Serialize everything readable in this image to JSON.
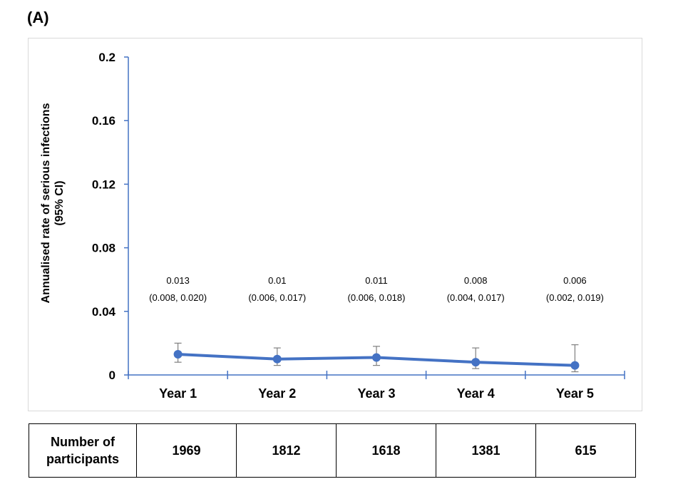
{
  "panel_label": "(A)",
  "chart_data": {
    "type": "line",
    "ylabel_line1": "Annualised rate of serious infections",
    "ylabel_line2": "(95% CI)",
    "ylim": [
      0,
      0.2
    ],
    "yticks": [
      "0",
      "0.04",
      "0.08",
      "0.12",
      "0.16",
      "0.2"
    ],
    "ytick_values": [
      0,
      0.04,
      0.08,
      0.12,
      0.16,
      0.2
    ],
    "categories": [
      "Year 1",
      "Year 2",
      "Year 3",
      "Year 4",
      "Year 5"
    ],
    "values": [
      0.013,
      0.01,
      0.011,
      0.008,
      0.006
    ],
    "ci_lower": [
      0.008,
      0.006,
      0.006,
      0.004,
      0.002
    ],
    "ci_upper": [
      0.02,
      0.017,
      0.018,
      0.017,
      0.019
    ],
    "value_labels": [
      "0.013",
      "0.01",
      "0.011",
      "0.008",
      "0.006"
    ],
    "ci_labels": [
      "(0.008, 0.020)",
      "(0.006, 0.017)",
      "(0.006, 0.018)",
      "(0.004, 0.017)",
      "(0.002, 0.019)"
    ],
    "grid": false,
    "line_color": "#4472c4",
    "errorbar_color": "#7f7f7f"
  },
  "participants_table": {
    "header_line1": "Number of",
    "header_line2": "participants",
    "values": [
      "1969",
      "1812",
      "1618",
      "1381",
      "615"
    ]
  }
}
